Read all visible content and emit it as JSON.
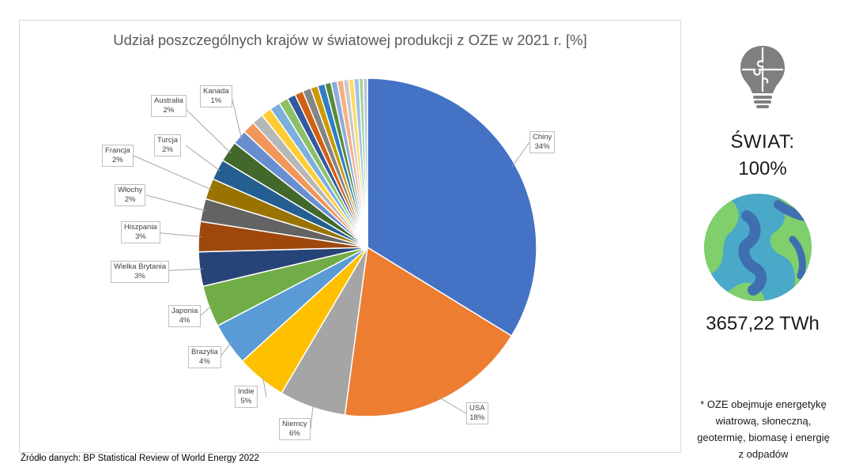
{
  "chart_data": {
    "type": "pie",
    "title": "Udział poszczególnych krajów w światowej produkcji z OZE w 2021 r. [%]",
    "labeled": [
      {
        "name": "Chiny",
        "label": "34%",
        "value": 34.0,
        "color": "#4472C4"
      },
      {
        "name": "USA",
        "label": "18%",
        "value": 18.5,
        "color": "#ED7D31"
      },
      {
        "name": "Niemcy",
        "label": "6%",
        "value": 6.4,
        "color": "#A5A5A5"
      },
      {
        "name": "Indie",
        "label": "5%",
        "value": 4.8,
        "color": "#FFC000"
      },
      {
        "name": "Brazylia",
        "label": "4%",
        "value": 4.1,
        "color": "#5B9BD5"
      },
      {
        "name": "Japonia",
        "label": "4%",
        "value": 4.0,
        "color": "#70AD47"
      },
      {
        "name": "Wielka Brytania",
        "label": "3%",
        "value": 3.3,
        "color": "#264478"
      },
      {
        "name": "Hiszpania",
        "label": "3%",
        "value": 2.9,
        "color": "#9E480E"
      },
      {
        "name": "Włochy",
        "label": "2%",
        "value": 2.2,
        "color": "#636363"
      },
      {
        "name": "Francja",
        "label": "2%",
        "value": 2.0,
        "color": "#997300"
      },
      {
        "name": "Turcja",
        "label": "2%",
        "value": 2.0,
        "color": "#255E91"
      },
      {
        "name": "Australia",
        "label": "2%",
        "value": 2.0,
        "color": "#43682B"
      },
      {
        "name": "Kanada",
        "label": "1%",
        "value": 1.4,
        "color": "#698ED0"
      }
    ],
    "unlabeled_values": [
      1.2,
      1.1,
      1.0,
      1.0,
      0.9,
      0.8,
      0.8,
      0.8,
      0.7,
      0.7,
      0.6,
      0.6,
      0.6,
      0.5,
      0.5,
      0.5,
      0.4,
      0.4
    ],
    "unlabeled_colors": [
      "#F1975A",
      "#B7B7B7",
      "#FFCD33",
      "#7CAFDD",
      "#8CC168",
      "#335AA1",
      "#D26012",
      "#848484",
      "#CC9A00",
      "#327DC2",
      "#5A8A39",
      "#8FAADC",
      "#F4B183",
      "#C9C9C9",
      "#FFD966",
      "#9DC3E6",
      "#A9D18E",
      "#B4C7E7"
    ]
  },
  "source": "Źródło danych: BP Statistical Review of World Energy 2022",
  "side": {
    "world_label": "ŚWIAT:",
    "world_value": "100%",
    "energy": "3657,22 TWh",
    "note_lines": [
      "* OZE obejmuje energetykę",
      "wiatrową, słoneczną,",
      "geotermię, biomasę i energię",
      "z odpadów"
    ]
  },
  "icons": {
    "bulb": "lightbulb-puzzle-icon",
    "globe": "globe-icon"
  }
}
